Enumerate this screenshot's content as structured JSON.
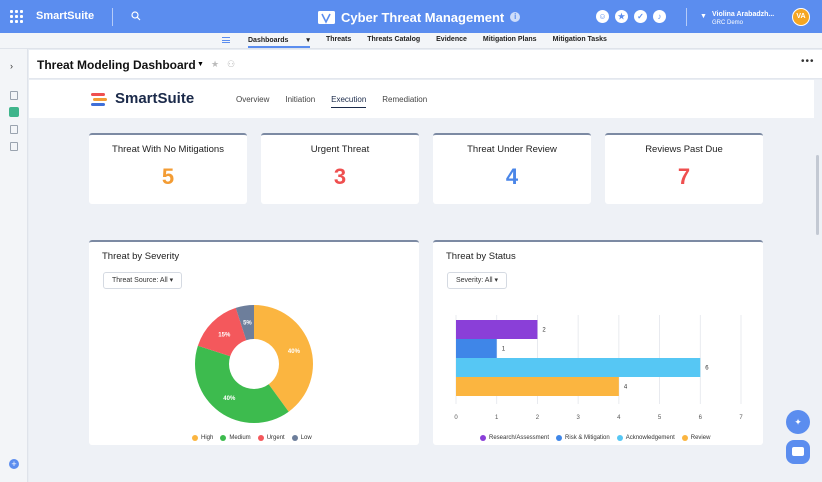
{
  "topbar": {
    "brand": "SmartSuite",
    "app_title": "Cyber Threat Management",
    "user_name": "Violina Arabadzh...",
    "user_org": "GRC Demo",
    "avatar_initials": "VA",
    "accent_color": "#5b8def"
  },
  "nav": {
    "items": [
      "Dashboards",
      "Threats",
      "Threats Catalog",
      "Evidence",
      "Mitigation Plans",
      "Mitigation Tasks"
    ],
    "active": "Dashboards"
  },
  "dashboard": {
    "title": "Threat Modeling Dashboard",
    "logo_text": "SmartSuite",
    "tabs": [
      "Overview",
      "Initiation",
      "Execution",
      "Remediation"
    ],
    "active_tab": "Execution"
  },
  "kpis": [
    {
      "title": "Threat With No Mitigations",
      "value": "5",
      "color": "#f39c34"
    },
    {
      "title": "Urgent Threat",
      "value": "3",
      "color": "#ef4f4f"
    },
    {
      "title": "Threat Under Review",
      "value": "4",
      "color": "#4a86e8"
    },
    {
      "title": "Reviews Past Due",
      "value": "7",
      "color": "#ef4f4f"
    }
  ],
  "severity_panel": {
    "title": "Threat by Severity",
    "filter": "Threat Source: All"
  },
  "status_panel": {
    "title": "Threat by Status",
    "filter": "Severity: All"
  },
  "chart_data": [
    {
      "type": "pie",
      "title": "Threat by Severity",
      "categories": [
        "High",
        "Medium",
        "Urgent",
        "Low"
      ],
      "values": [
        40,
        40,
        15,
        5
      ],
      "labels": [
        "40%",
        "40%",
        "15%",
        "5%"
      ],
      "colors": [
        "#fbb540",
        "#3dbb4e",
        "#f4585c",
        "#6d7e9b"
      ],
      "legend": "bottom"
    },
    {
      "type": "bar",
      "orientation": "horizontal",
      "title": "Threat by Status",
      "categories": [
        "Research/Assessment",
        "Risk & Mitigation",
        "Acknowledgement",
        "Review"
      ],
      "values": [
        2,
        1,
        6,
        4
      ],
      "colors": [
        "#8a3fd8",
        "#3f86e8",
        "#56c7f4",
        "#fbb540"
      ],
      "xlim": [
        0,
        7
      ],
      "xticks": [
        "0",
        "1",
        "2",
        "3",
        "4",
        "5",
        "6",
        "7"
      ],
      "grid": true,
      "legend": "bottom"
    }
  ]
}
